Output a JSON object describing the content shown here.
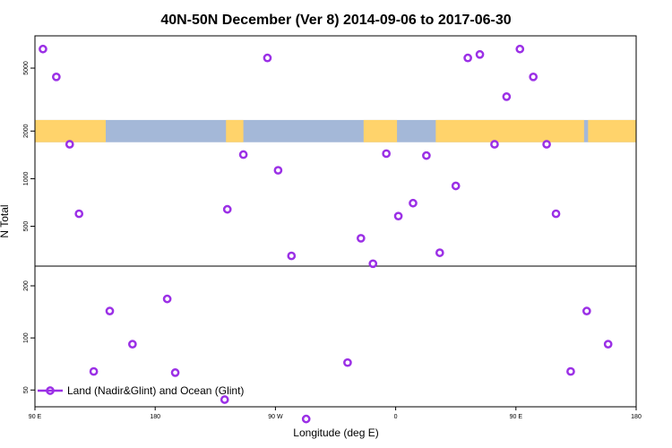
{
  "chart_data": {
    "type": "scatter",
    "title": "40N-50N December (Ver 8)   2014-09-06 to 2017-06-30",
    "xlabel": "Longitude (deg E)",
    "ylabel": "N Total",
    "x_ticks": [
      "90 E",
      "180",
      "90 W",
      "0",
      "90 E",
      "180"
    ],
    "x_tick_values": [
      90,
      180,
      270,
      360,
      450,
      540
    ],
    "xlim": [
      90,
      540
    ],
    "panels": [
      {
        "name": "upper",
        "scale": "log",
        "ylim": [
          280,
          8000
        ],
        "y_ticks": [
          500,
          1000,
          2000,
          5000
        ],
        "y_tick_labels": [
          "500",
          "1000",
          "2000",
          "5000"
        ],
        "band_range": [
          1700,
          2350
        ]
      },
      {
        "name": "lower",
        "scale": "log",
        "ylim": [
          40,
          260
        ],
        "y_ticks": [
          50,
          100,
          200
        ],
        "y_tick_labels": [
          "50",
          "100",
          "200"
        ]
      }
    ],
    "legend": {
      "label": "Land (Nadir&Glint) and Ocean (Glint)",
      "position": "bottom-left",
      "color": "#9b30e6"
    },
    "series": [
      {
        "name": "Land (Nadir&Glint) and Ocean (Glint)",
        "color": "#9b30e6",
        "points": [
          {
            "panel": "upper",
            "x": 96,
            "y": 6600
          },
          {
            "panel": "upper",
            "x": 106,
            "y": 4400
          },
          {
            "panel": "upper",
            "x": 116,
            "y": 1650
          },
          {
            "panel": "upper",
            "x": 123,
            "y": 600
          },
          {
            "panel": "upper",
            "x": 246,
            "y": 1420
          },
          {
            "panel": "upper",
            "x": 234,
            "y": 640
          },
          {
            "panel": "upper",
            "x": 264,
            "y": 5800
          },
          {
            "panel": "upper",
            "x": 272,
            "y": 1130
          },
          {
            "panel": "upper",
            "x": 282,
            "y": 325
          },
          {
            "panel": "upper",
            "x": 334,
            "y": 420
          },
          {
            "panel": "upper",
            "x": 353,
            "y": 1440
          },
          {
            "panel": "upper",
            "x": 343,
            "y": 290
          },
          {
            "panel": "upper",
            "x": 362,
            "y": 580
          },
          {
            "panel": "upper",
            "x": 373,
            "y": 700
          },
          {
            "panel": "upper",
            "x": 383,
            "y": 1400
          },
          {
            "panel": "upper",
            "x": 393,
            "y": 340
          },
          {
            "panel": "upper",
            "x": 405,
            "y": 900
          },
          {
            "panel": "upper",
            "x": 414,
            "y": 5800
          },
          {
            "panel": "upper",
            "x": 423,
            "y": 6100
          },
          {
            "panel": "upper",
            "x": 434,
            "y": 1650
          },
          {
            "panel": "upper",
            "x": 443,
            "y": 3300
          },
          {
            "panel": "upper",
            "x": 453,
            "y": 6600
          },
          {
            "panel": "upper",
            "x": 463,
            "y": 4400
          },
          {
            "panel": "upper",
            "x": 473,
            "y": 1650
          },
          {
            "panel": "upper",
            "x": 480,
            "y": 600
          },
          {
            "panel": "lower",
            "x": 134,
            "y": 64
          },
          {
            "panel": "lower",
            "x": 146,
            "y": 143
          },
          {
            "panel": "lower",
            "x": 163,
            "y": 92
          },
          {
            "panel": "lower",
            "x": 189,
            "y": 168
          },
          {
            "panel": "lower",
            "x": 195,
            "y": 63
          },
          {
            "panel": "lower",
            "x": 232,
            "y": 44
          },
          {
            "panel": "lower",
            "x": 293,
            "y": 34
          },
          {
            "panel": "lower",
            "x": 324,
            "y": 72
          },
          {
            "panel": "lower",
            "x": 491,
            "y": 64
          },
          {
            "panel": "lower",
            "x": 503,
            "y": 143
          },
          {
            "panel": "lower",
            "x": 519,
            "y": 92
          }
        ]
      }
    ],
    "band_colors": {
      "land": "#ffd36b",
      "ocean": "#a4b8d8"
    },
    "land_segments": [
      [
        90,
        143
      ],
      [
        233,
        246
      ],
      [
        336,
        361
      ],
      [
        390,
        501
      ],
      [
        504,
        540
      ]
    ]
  }
}
